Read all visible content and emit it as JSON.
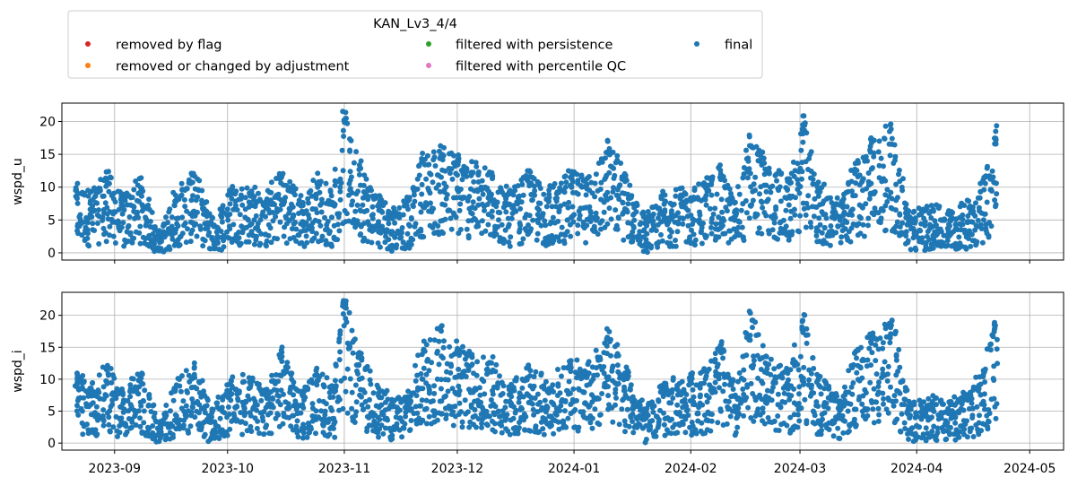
{
  "legend": {
    "title": "KAN_Lv3_4/4",
    "entries": [
      {
        "label": "removed by flag",
        "color": "#d62728"
      },
      {
        "label": "removed or changed by adjustment",
        "color": "#ff7f0e"
      },
      {
        "label": "filtered with persistence",
        "color": "#2ca02c"
      },
      {
        "label": "filtered with percentile QC",
        "color": "#e377c2"
      },
      {
        "label": "final",
        "color": "#1f77b4"
      }
    ]
  },
  "chart_data": [
    {
      "type": "scatter",
      "ylabel": "wspd_u",
      "xlabel": "",
      "grid": true,
      "xlim": [
        "2023-08-18",
        "2024-05-10"
      ],
      "ylim": [
        -1.1,
        22.8
      ],
      "yticks": [
        0,
        5,
        10,
        15,
        20
      ],
      "xticks": [
        "2023-09",
        "2023-10",
        "2023-11",
        "2023-12",
        "2024-01",
        "2024-02",
        "2024-03",
        "2024-04",
        "2024-05"
      ],
      "series": [
        {
          "name": "final",
          "color": "#1f77b4",
          "start": "2023-08-22",
          "end": "2024-04-22",
          "approx_daily_max": [
            [
              "2023-08-22",
              10.6
            ],
            [
              "2023-08-26",
              9.8
            ],
            [
              "2023-08-30",
              12.6
            ],
            [
              "2023-09-03",
              9.0
            ],
            [
              "2023-09-08",
              11.5
            ],
            [
              "2023-09-13",
              3.5
            ],
            [
              "2023-09-17",
              9.4
            ],
            [
              "2023-09-22",
              12.8
            ],
            [
              "2023-09-27",
              5.5
            ],
            [
              "2023-10-02",
              10.3
            ],
            [
              "2023-10-07",
              11.0
            ],
            [
              "2023-10-11",
              8.5
            ],
            [
              "2023-10-15",
              13.5
            ],
            [
              "2023-10-18",
              11.0
            ],
            [
              "2023-10-21",
              8.3
            ],
            [
              "2023-10-25",
              12.5
            ],
            [
              "2023-10-29",
              9.2
            ],
            [
              "2023-11-01",
              21.7
            ],
            [
              "2023-11-05",
              14.0
            ],
            [
              "2023-11-10",
              9.5
            ],
            [
              "2023-11-14",
              7.0
            ],
            [
              "2023-11-18",
              8.5
            ],
            [
              "2023-11-22",
              15.5
            ],
            [
              "2023-11-27",
              16.5
            ],
            [
              "2023-12-01",
              15.3
            ],
            [
              "2023-12-05",
              14.0
            ],
            [
              "2023-12-10",
              13.0
            ],
            [
              "2023-12-15",
              9.5
            ],
            [
              "2023-12-20",
              12.5
            ],
            [
              "2023-12-25",
              10.0
            ],
            [
              "2023-12-31",
              12.5
            ],
            [
              "2024-01-04",
              12.0
            ],
            [
              "2024-01-10",
              17.3
            ],
            [
              "2024-01-15",
              12.0
            ],
            [
              "2024-01-20",
              5.5
            ],
            [
              "2024-01-25",
              9.7
            ],
            [
              "2024-02-01",
              10.0
            ],
            [
              "2024-02-05",
              11.5
            ],
            [
              "2024-02-09",
              13.5
            ],
            [
              "2024-02-13",
              8.0
            ],
            [
              "2024-02-17",
              18.8
            ],
            [
              "2024-02-21",
              14.3
            ],
            [
              "2024-02-27",
              11.5
            ],
            [
              "2024-03-02",
              20.9
            ],
            [
              "2024-03-06",
              11.0
            ],
            [
              "2024-03-12",
              8.0
            ],
            [
              "2024-03-16",
              14.5
            ],
            [
              "2024-03-20",
              17.5
            ],
            [
              "2024-03-25",
              19.8
            ],
            [
              "2024-03-30",
              6.5
            ],
            [
              "2024-04-05",
              7.5
            ],
            [
              "2024-04-10",
              6.5
            ],
            [
              "2024-04-15",
              8.5
            ],
            [
              "2024-04-19",
              12.0
            ],
            [
              "2024-04-22",
              19.5
            ]
          ]
        }
      ]
    },
    {
      "type": "scatter",
      "ylabel": "wspd_i",
      "xlabel": "",
      "grid": true,
      "xlim": [
        "2023-08-18",
        "2024-05-10"
      ],
      "ylim": [
        -1.1,
        23.6
      ],
      "yticks": [
        0,
        5,
        10,
        15,
        20
      ],
      "xticks": [
        "2023-09",
        "2023-10",
        "2023-11",
        "2023-12",
        "2024-01",
        "2024-02",
        "2024-03",
        "2024-04",
        "2024-05"
      ],
      "series": [
        {
          "name": "final",
          "color": "#1f77b4",
          "start": "2023-08-22",
          "end": "2024-04-22",
          "approx_daily_max": [
            [
              "2023-08-22",
              11.3
            ],
            [
              "2023-08-26",
              9.8
            ],
            [
              "2023-08-30",
              12.6
            ],
            [
              "2023-09-03",
              9.0
            ],
            [
              "2023-09-08",
              11.3
            ],
            [
              "2023-09-13",
              3.5
            ],
            [
              "2023-09-17",
              9.4
            ],
            [
              "2023-09-22",
              13.0
            ],
            [
              "2023-09-27",
              5.5
            ],
            [
              "2023-10-02",
              10.5
            ],
            [
              "2023-10-07",
              11.0
            ],
            [
              "2023-10-11",
              8.5
            ],
            [
              "2023-10-15",
              15.2
            ],
            [
              "2023-10-18",
              11.5
            ],
            [
              "2023-10-21",
              8.3
            ],
            [
              "2023-10-25",
              12.0
            ],
            [
              "2023-10-29",
              9.2
            ],
            [
              "2023-11-01",
              22.5
            ],
            [
              "2023-11-05",
              14.5
            ],
            [
              "2023-11-10",
              9.5
            ],
            [
              "2023-11-14",
              7.0
            ],
            [
              "2023-11-18",
              8.5
            ],
            [
              "2023-11-22",
              16.0
            ],
            [
              "2023-11-27",
              18.6
            ],
            [
              "2023-12-01",
              16.0
            ],
            [
              "2023-12-05",
              14.0
            ],
            [
              "2023-12-10",
              13.5
            ],
            [
              "2023-12-15",
              9.5
            ],
            [
              "2023-12-20",
              12.5
            ],
            [
              "2023-12-25",
              10.0
            ],
            [
              "2023-12-31",
              13.5
            ],
            [
              "2024-01-04",
              12.5
            ],
            [
              "2024-01-10",
              18.0
            ],
            [
              "2024-01-15",
              12.0
            ],
            [
              "2024-01-20",
              5.5
            ],
            [
              "2024-01-25",
              10.0
            ],
            [
              "2024-02-01",
              11.0
            ],
            [
              "2024-02-05",
              12.0
            ],
            [
              "2024-02-09",
              16.8
            ],
            [
              "2024-02-13",
              8.0
            ],
            [
              "2024-02-17",
              20.7
            ],
            [
              "2024-02-21",
              13.8
            ],
            [
              "2024-02-27",
              11.5
            ],
            [
              "2024-03-02",
              20.3
            ],
            [
              "2024-03-06",
              11.0
            ],
            [
              "2024-03-12",
              8.0
            ],
            [
              "2024-03-16",
              15.0
            ],
            [
              "2024-03-20",
              17.5
            ],
            [
              "2024-03-25",
              20.3
            ],
            [
              "2024-03-30",
              6.5
            ],
            [
              "2024-04-05",
              7.5
            ],
            [
              "2024-04-10",
              7.0
            ],
            [
              "2024-04-15",
              9.0
            ],
            [
              "2024-04-19",
              12.5
            ],
            [
              "2024-04-22",
              19.8
            ]
          ]
        }
      ]
    }
  ]
}
